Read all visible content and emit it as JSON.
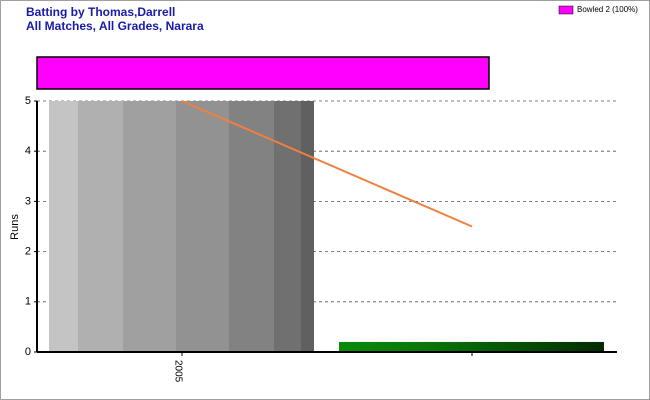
{
  "chart_data": {
    "type": "bar",
    "title": "Batting by Thomas,Darrell",
    "subtitle": "All Matches, All Grades, Narara",
    "y_label": "Runs",
    "categories": [
      "2005",
      null
    ],
    "values": [
      5,
      0.2
    ],
    "bar_colors": [
      "#909090",
      "#0a6e0a"
    ],
    "line": {
      "values": [
        5,
        2.5
      ],
      "color": "#f08040"
    },
    "legend": [
      {
        "name": "Bowled 2 (100%)",
        "color": "#ff00ff"
      }
    ],
    "ylim": [
      0,
      5
    ],
    "yticks": [
      0,
      1,
      2,
      3,
      4,
      5
    ],
    "grid": true
  }
}
